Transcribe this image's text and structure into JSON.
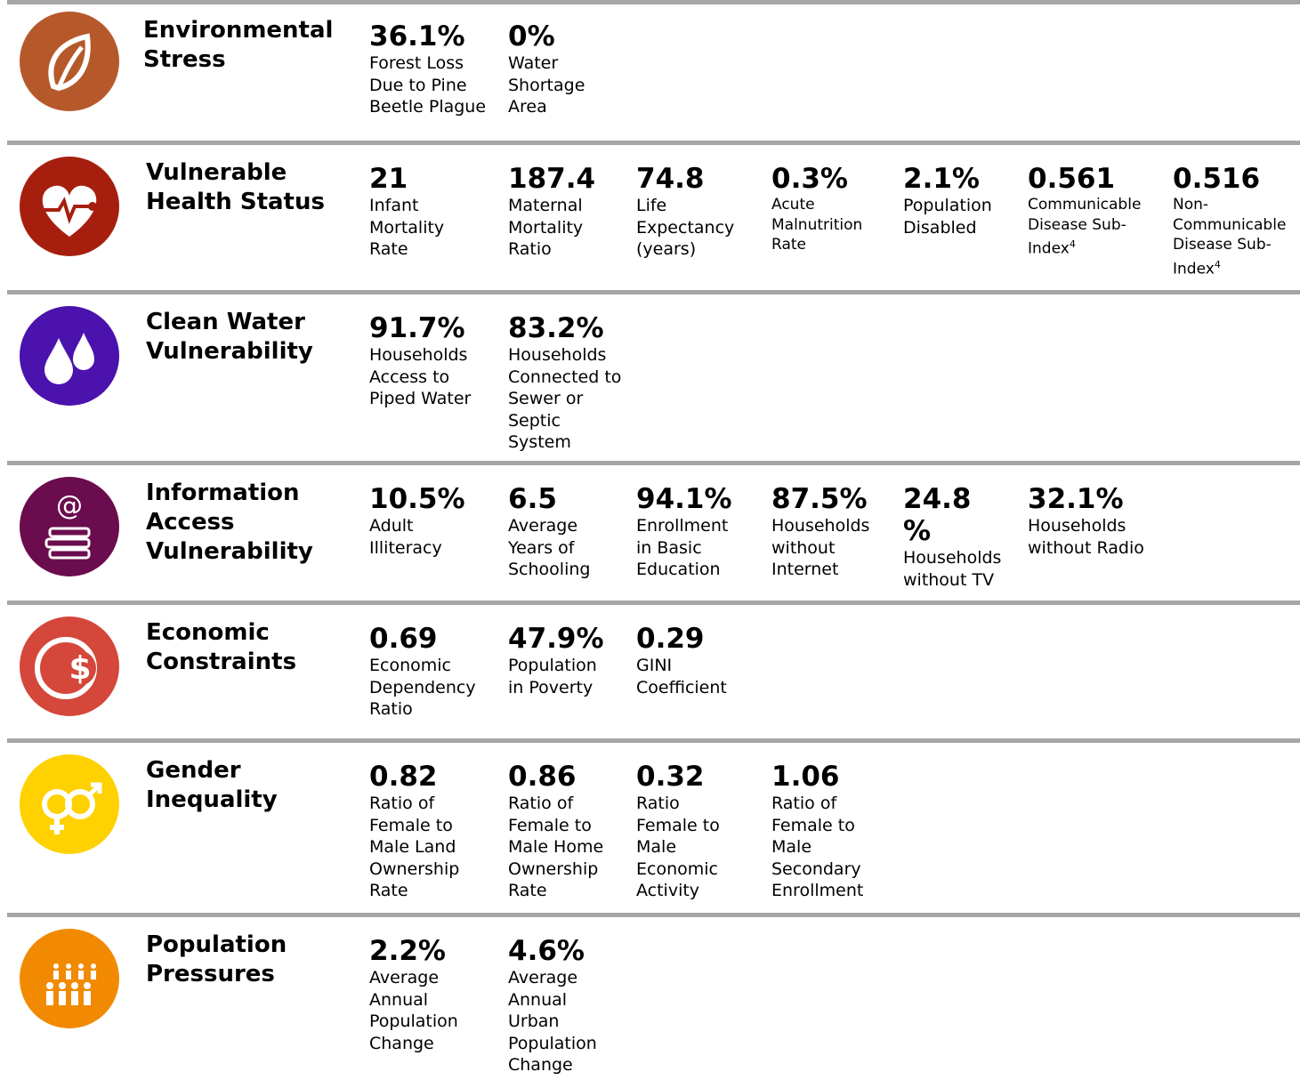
{
  "sections": [
    {
      "title": [
        "Environmental",
        "Stress"
      ],
      "metrics": [
        {
          "value": [
            "36.1%"
          ],
          "label": [
            "Forest Loss",
            "Due to Pine",
            "Beetle Plague"
          ]
        },
        {
          "value": [
            "0%"
          ],
          "label": [
            "Water",
            "Shortage",
            "Area"
          ]
        }
      ]
    },
    {
      "title": [
        "Vulnerable",
        "Health Status"
      ],
      "metrics": [
        {
          "value": [
            "21"
          ],
          "label": [
            "Infant",
            "Mortality",
            "Rate"
          ]
        },
        {
          "value": [
            "187.4"
          ],
          "label": [
            "Maternal",
            "Mortality",
            "Ratio"
          ]
        },
        {
          "value": [
            "74.8"
          ],
          "label": [
            "Life",
            "Expectancy",
            "(years)"
          ]
        },
        {
          "value": [
            "0.3%"
          ],
          "label": [
            "Acute",
            "Malnutrition",
            "Rate"
          ]
        },
        {
          "value": [
            "2.1%"
          ],
          "label": [
            "Population",
            "Disabled"
          ]
        },
        {
          "value": [
            "0.561"
          ],
          "label": [
            "Communicable",
            "Disease Sub-",
            "Index"
          ],
          "note": "4"
        },
        {
          "value": [
            "0.516"
          ],
          "label": [
            "Non-",
            "Communicable",
            "Disease Sub-",
            "Index"
          ],
          "note": "4"
        }
      ]
    },
    {
      "title": [
        "Clean Water",
        "Vulnerability"
      ],
      "metrics": [
        {
          "value": [
            "91.7%"
          ],
          "label": [
            "Households",
            "Access to",
            "Piped Water"
          ]
        },
        {
          "value": [
            "83.2%"
          ],
          "label": [
            "Households",
            "Connected to",
            "Sewer or",
            "Septic",
            "System"
          ]
        }
      ]
    },
    {
      "title": [
        "Information",
        "Access",
        "Vulnerability"
      ],
      "metrics": [
        {
          "value": [
            "10.5%"
          ],
          "label": [
            "Adult",
            "Illiteracy"
          ]
        },
        {
          "value": [
            "6.5"
          ],
          "label": [
            "Average",
            "Years of",
            "Schooling"
          ]
        },
        {
          "value": [
            "94.1%"
          ],
          "label": [
            "Enrollment",
            "in Basic",
            "Education"
          ]
        },
        {
          "value": [
            "87.5%"
          ],
          "label": [
            "Households",
            "without",
            "Internet"
          ]
        },
        {
          "value": [
            "24.8",
            "%"
          ],
          "label": [
            "Households",
            "without TV"
          ]
        },
        {
          "value": [
            "32.1%"
          ],
          "label": [
            "Households",
            "without Radio"
          ]
        }
      ]
    },
    {
      "title": [
        "Economic",
        "Constraints"
      ],
      "metrics": [
        {
          "value": [
            "0.69"
          ],
          "label": [
            "Economic",
            "Dependency",
            "Ratio"
          ]
        },
        {
          "value": [
            "47.9%"
          ],
          "label": [
            "Population",
            "in Poverty"
          ]
        },
        {
          "value": [
            "0.29"
          ],
          "label": [
            "GINI",
            "Coefficient"
          ]
        }
      ]
    },
    {
      "title": [
        "Gender",
        "Inequality"
      ],
      "metrics": [
        {
          "value": [
            "0.82"
          ],
          "label": [
            "Ratio of",
            "Female to",
            "Male Land",
            "Ownership",
            "Rate"
          ]
        },
        {
          "value": [
            "0.86"
          ],
          "label": [
            "Ratio of",
            "Female to",
            "Male Home",
            "Ownership",
            "Rate"
          ]
        },
        {
          "value": [
            "0.32"
          ],
          "label": [
            "Ratio",
            "Female to",
            "Male",
            "Economic",
            "Activity"
          ]
        },
        {
          "value": [
            "1.06"
          ],
          "label": [
            "Ratio of",
            "Female to",
            "Male",
            "Secondary",
            "Enrollment"
          ]
        }
      ]
    },
    {
      "title": [
        "Population",
        "Pressures"
      ],
      "metrics": [
        {
          "value": [
            "2.2%"
          ],
          "label": [
            "Average",
            "Annual",
            "Population",
            "Change"
          ]
        },
        {
          "value": [
            "4.6%"
          ],
          "label": [
            "Average",
            "Annual",
            "Urban",
            "Population",
            "Change"
          ]
        }
      ]
    }
  ]
}
